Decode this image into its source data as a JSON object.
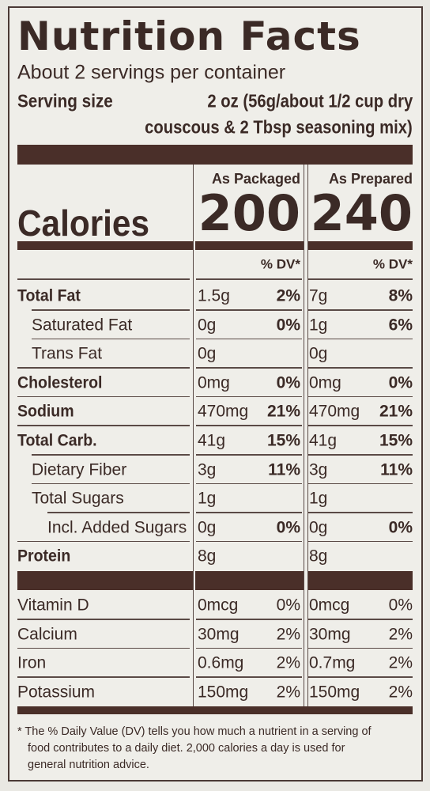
{
  "header": {
    "title": "Nutrition Facts",
    "servings": "About 2 servings per container",
    "serving_size_label": "Serving size",
    "serving_size_lines": [
      "2 oz (56g/about 1/2 cup dry",
      "couscous & 2 Tbsp seasoning mix)"
    ]
  },
  "columns": {
    "packaged": "As Packaged",
    "prepared": "As Prepared"
  },
  "calories": {
    "label": "Calories",
    "packaged": "200",
    "prepared": "240"
  },
  "dv_header": "% DV*",
  "nutrients": [
    {
      "label": "Total Fat",
      "packaged": {
        "amount": "1.5g",
        "dv": "2%"
      },
      "prepared": {
        "amount": "7g",
        "dv": "8%"
      }
    },
    {
      "label": "Saturated Fat",
      "packaged": {
        "amount": "0g",
        "dv": "0%"
      },
      "prepared": {
        "amount": "1g",
        "dv": "6%"
      }
    },
    {
      "label": "Trans Fat",
      "packaged": {
        "amount": "0g"
      },
      "prepared": {
        "amount": "0g"
      }
    },
    {
      "label": "Cholesterol",
      "packaged": {
        "amount": "0mg",
        "dv": "0%"
      },
      "prepared": {
        "amount": "0mg",
        "dv": "0%"
      }
    },
    {
      "label": "Sodium",
      "packaged": {
        "amount": "470mg",
        "dv": "21%"
      },
      "prepared": {
        "amount": "470mg",
        "dv": "21%"
      }
    },
    {
      "label": "Total Carb.",
      "packaged": {
        "amount": "41g",
        "dv": "15%"
      },
      "prepared": {
        "amount": "41g",
        "dv": "15%"
      }
    },
    {
      "label": "Dietary Fiber",
      "packaged": {
        "amount": "3g",
        "dv": "11%"
      },
      "prepared": {
        "amount": "3g",
        "dv": "11%"
      }
    },
    {
      "label": "Total Sugars",
      "packaged": {
        "amount": "1g"
      },
      "prepared": {
        "amount": "1g"
      }
    },
    {
      "label": "Incl. Added Sugars",
      "packaged": {
        "amount": "0g",
        "dv": "0%"
      },
      "prepared": {
        "amount": "0g",
        "dv": "0%"
      }
    },
    {
      "label": "Protein",
      "packaged": {
        "amount": "8g"
      },
      "prepared": {
        "amount": "8g"
      }
    }
  ],
  "vitamins": [
    {
      "label": "Vitamin D",
      "packaged": {
        "amount": "0mcg",
        "dv": "0%"
      },
      "prepared": {
        "amount": "0mcg",
        "dv": "0%"
      }
    },
    {
      "label": "Calcium",
      "packaged": {
        "amount": "30mg",
        "dv": "2%"
      },
      "prepared": {
        "amount": "30mg",
        "dv": "2%"
      }
    },
    {
      "label": "Iron",
      "packaged": {
        "amount": "0.6mg",
        "dv": "2%"
      },
      "prepared": {
        "amount": "0.7mg",
        "dv": "2%"
      }
    },
    {
      "label": "Potassium",
      "packaged": {
        "amount": "150mg",
        "dv": "2%"
      },
      "prepared": {
        "amount": "150mg",
        "dv": "2%"
      }
    }
  ],
  "footnote": [
    "* The % Daily Value (DV) tells you how much a nutrient in a serving of",
    "food contributes to a daily diet. 2,000 calories a day is used for",
    "general nutrition advice."
  ]
}
